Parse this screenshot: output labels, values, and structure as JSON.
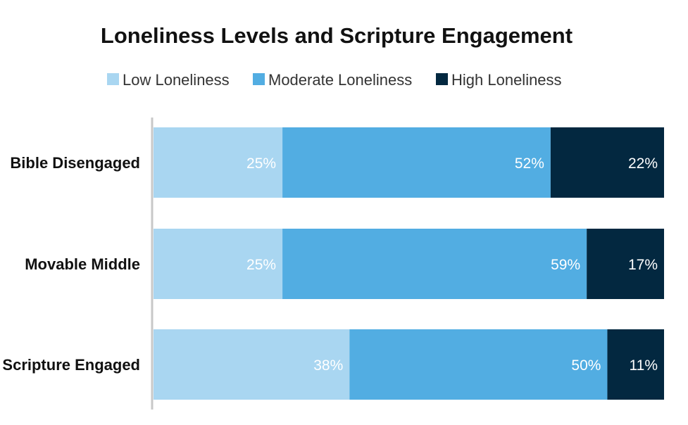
{
  "chart_data": {
    "type": "bar",
    "orientation": "horizontal",
    "stacked": true,
    "title": "Loneliness Levels and Scripture Engagement",
    "xlabel": "",
    "ylabel": "",
    "xlim": [
      0,
      99
    ],
    "grid": false,
    "legend_position": "top-center",
    "categories": [
      "Bible Disengaged",
      "Movable Middle",
      "Scripture Engaged"
    ],
    "series": [
      {
        "name": "Low Loneliness",
        "color": "#a9d6f1",
        "values": [
          25,
          25,
          38
        ],
        "labels": [
          "25%",
          "25%",
          "38%"
        ]
      },
      {
        "name": "Moderate Loneliness",
        "color": "#52ade2",
        "values": [
          52,
          59,
          50
        ],
        "labels": [
          "52%",
          "59%",
          "50%"
        ]
      },
      {
        "name": "High Loneliness",
        "color": "#032840",
        "values": [
          22,
          17,
          11
        ],
        "labels": [
          "22%",
          "17%",
          "11%"
        ]
      }
    ]
  }
}
